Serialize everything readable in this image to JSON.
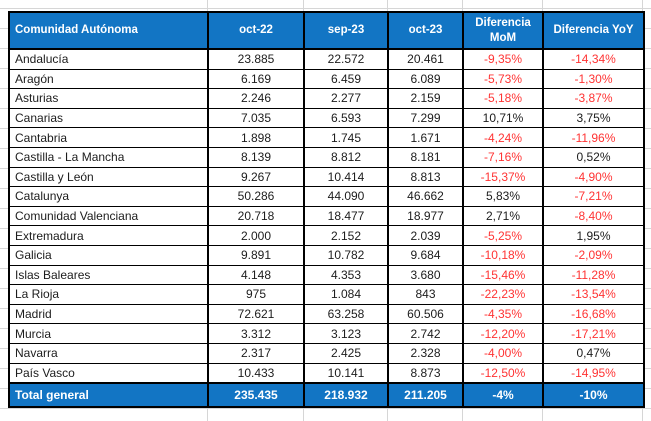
{
  "table": {
    "columns": [
      "Comunidad Autónoma",
      "oct-22",
      "sep-23",
      "oct-23",
      "Diferencia MoM",
      "Diferencia YoY"
    ],
    "rows": [
      {
        "name": "Andalucía",
        "oct22": "23.885",
        "sep23": "22.572",
        "oct23": "20.461",
        "mom": "-9,35%",
        "yoy": "-14,34%"
      },
      {
        "name": "Aragón",
        "oct22": "6.169",
        "sep23": "6.459",
        "oct23": "6.089",
        "mom": "-5,73%",
        "yoy": "-1,30%"
      },
      {
        "name": "Asturias",
        "oct22": "2.246",
        "sep23": "2.277",
        "oct23": "2.159",
        "mom": "-5,18%",
        "yoy": "-3,87%"
      },
      {
        "name": "Canarias",
        "oct22": "7.035",
        "sep23": "6.593",
        "oct23": "7.299",
        "mom": "10,71%",
        "yoy": "3,75%"
      },
      {
        "name": "Cantabria",
        "oct22": "1.898",
        "sep23": "1.745",
        "oct23": "1.671",
        "mom": "-4,24%",
        "yoy": "-11,96%"
      },
      {
        "name": "Castilla - La Mancha",
        "oct22": "8.139",
        "sep23": "8.812",
        "oct23": "8.181",
        "mom": "-7,16%",
        "yoy": "0,52%"
      },
      {
        "name": "Castilla y León",
        "oct22": "9.267",
        "sep23": "10.414",
        "oct23": "8.813",
        "mom": "-15,37%",
        "yoy": "-4,90%"
      },
      {
        "name": "Catalunya",
        "oct22": "50.286",
        "sep23": "44.090",
        "oct23": "46.662",
        "mom": "5,83%",
        "yoy": "-7,21%"
      },
      {
        "name": "Comunidad Valenciana",
        "oct22": "20.718",
        "sep23": "18.477",
        "oct23": "18.977",
        "mom": "2,71%",
        "yoy": "-8,40%"
      },
      {
        "name": "Extremadura",
        "oct22": "2.000",
        "sep23": "2.152",
        "oct23": "2.039",
        "mom": "-5,25%",
        "yoy": "1,95%"
      },
      {
        "name": "Galicia",
        "oct22": "9.891",
        "sep23": "10.782",
        "oct23": "9.684",
        "mom": "-10,18%",
        "yoy": "-2,09%"
      },
      {
        "name": "Islas Baleares",
        "oct22": "4.148",
        "sep23": "4.353",
        "oct23": "3.680",
        "mom": "-15,46%",
        "yoy": "-11,28%"
      },
      {
        "name": "La Rioja",
        "oct22": "975",
        "sep23": "1.084",
        "oct23": "843",
        "mom": "-22,23%",
        "yoy": "-13,54%"
      },
      {
        "name": "Madrid",
        "oct22": "72.621",
        "sep23": "63.258",
        "oct23": "60.506",
        "mom": "-4,35%",
        "yoy": "-16,68%"
      },
      {
        "name": "Murcia",
        "oct22": "3.312",
        "sep23": "3.123",
        "oct23": "2.742",
        "mom": "-12,20%",
        "yoy": "-17,21%"
      },
      {
        "name": "Navarra",
        "oct22": "2.317",
        "sep23": "2.425",
        "oct23": "2.328",
        "mom": "-4,00%",
        "yoy": "0,47%"
      },
      {
        "name": "País Vasco",
        "oct22": "10.433",
        "sep23": "10.141",
        "oct23": "8.873",
        "mom": "-12,50%",
        "yoy": "-14,95%"
      }
    ],
    "total": {
      "name": "Total general",
      "oct22": "235.435",
      "sep23": "218.932",
      "oct23": "211.205",
      "mom": "-4%",
      "yoy": "-10%"
    }
  },
  "colors": {
    "header_bg": "#1275c4",
    "header_text": "#ffffff",
    "negative": "#ff3333",
    "text": "#1c1c1c",
    "border": "#000000",
    "gridline": "#d6d6d6"
  }
}
